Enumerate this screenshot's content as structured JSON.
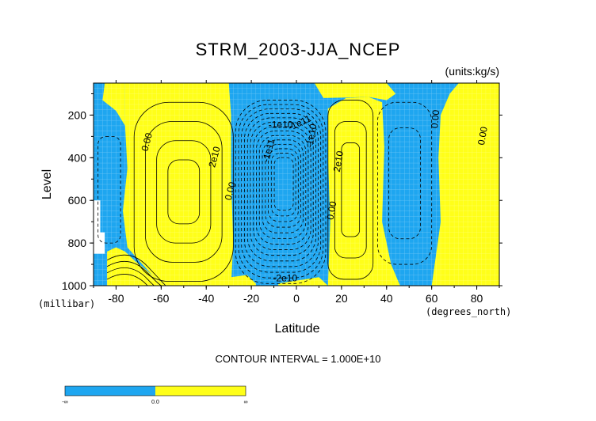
{
  "chart_data": {
    "type": "contour",
    "title": "STRM_2003-JJA_NCEP",
    "units_label": "(units:kg/s)",
    "xlabel": "Latitude",
    "xunits": "(degrees_north)",
    "ylabel": "Level",
    "yunits": "(millibar)",
    "xlim": [
      -90,
      90
    ],
    "ylim": [
      1000,
      50
    ],
    "y_inverted": true,
    "x_ticks": [
      -80,
      -60,
      -40,
      -20,
      0,
      20,
      40,
      60,
      80
    ],
    "x_tick_labels": [
      "-80",
      "-60",
      "-40",
      "-20",
      "0",
      "20",
      "40",
      "60",
      "80"
    ],
    "y_ticks": [
      200,
      400,
      600,
      800,
      1000
    ],
    "y_tick_labels": [
      "200",
      "400",
      "600",
      "800",
      "1000"
    ],
    "contour_interval_text": "CONTOUR INTERVAL = 1.000E+10",
    "fill_colors": {
      "negative": "#1ea6f0",
      "positive": "#ffff19"
    },
    "regions": [
      {
        "sign": "negative",
        "lat": [
          -90,
          -75
        ],
        "level": [
          50,
          1000
        ],
        "extremum": -10000000000.0
      },
      {
        "sign": "positive",
        "lat": [
          -75,
          -30
        ],
        "level": [
          50,
          1000
        ],
        "extremum": 40000000000.0
      },
      {
        "sign": "negative",
        "lat": [
          -30,
          13
        ],
        "level": [
          50,
          1000
        ],
        "extremum": -160000000000.0
      },
      {
        "sign": "positive",
        "lat": [
          13,
          35
        ],
        "level": [
          50,
          1000
        ],
        "extremum": 30000000000.0
      },
      {
        "sign": "negative",
        "lat": [
          35,
          62
        ],
        "level": [
          100,
          1000
        ],
        "extremum": -20000000000.0
      },
      {
        "sign": "positive",
        "lat": [
          62,
          90
        ],
        "level": [
          50,
          1000
        ],
        "extremum": 10000000000.0
      }
    ],
    "contour_labels": [
      "0.00",
      "2e10",
      "0.00",
      "-1e11",
      "-1e10",
      "-1e11",
      "-1e10",
      "2e10",
      "0.00",
      "0.00",
      "0.00",
      "-2e10"
    ],
    "colorbar": {
      "tick_labels": [
        "-∞",
        "0.0",
        "∞"
      ],
      "colors": [
        "#1ea6f0",
        "#ffff19"
      ]
    }
  }
}
